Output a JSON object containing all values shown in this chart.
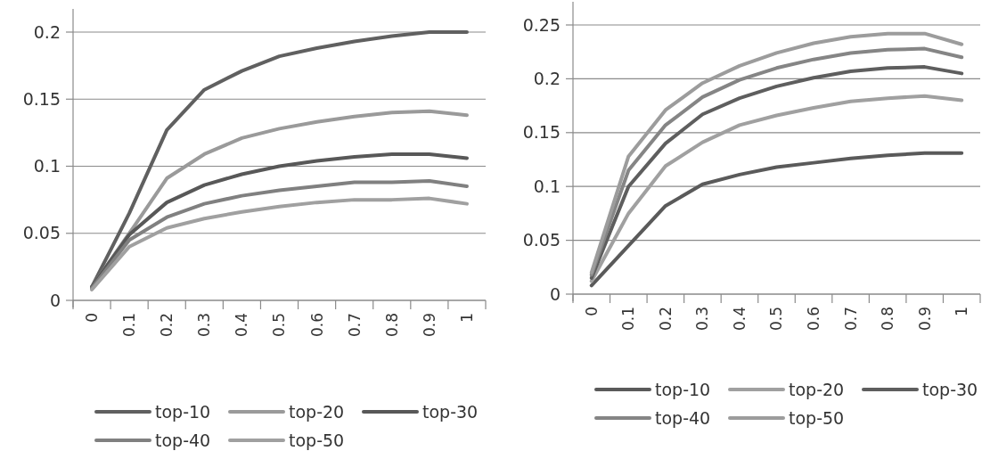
{
  "chart_data": [
    {
      "type": "line",
      "categories": [
        "0",
        "0.1",
        "0.2",
        "0.3",
        "0.4",
        "0.5",
        "0.6",
        "0.7",
        "0.8",
        "0.9",
        "1"
      ],
      "ylim": [
        0,
        0.2
      ],
      "yticks": [
        0,
        0.05,
        0.1,
        0.15,
        0.2
      ],
      "grid": "y",
      "legend": "bottom",
      "marker": "none",
      "line_style": "solid",
      "series": [
        {
          "name": "top-10",
          "color": "#606060",
          "values": [
            0.01,
            0.065,
            0.127,
            0.157,
            0.171,
            0.182,
            0.188,
            0.193,
            0.197,
            0.2,
            0.2
          ]
        },
        {
          "name": "top-20",
          "color": "#9a9a9a",
          "values": [
            0.01,
            0.05,
            0.091,
            0.109,
            0.121,
            0.128,
            0.133,
            0.137,
            0.14,
            0.141,
            0.138
          ]
        },
        {
          "name": "top-30",
          "color": "#585858",
          "values": [
            0.01,
            0.049,
            0.073,
            0.086,
            0.094,
            0.1,
            0.104,
            0.107,
            0.109,
            0.109,
            0.106
          ]
        },
        {
          "name": "top-40",
          "color": "#808080",
          "values": [
            0.009,
            0.045,
            0.062,
            0.072,
            0.078,
            0.082,
            0.085,
            0.088,
            0.088,
            0.089,
            0.085
          ]
        },
        {
          "name": "top-50",
          "color": "#a0a0a0",
          "values": [
            0.008,
            0.04,
            0.054,
            0.061,
            0.066,
            0.07,
            0.073,
            0.075,
            0.075,
            0.076,
            0.072
          ]
        }
      ]
    },
    {
      "type": "line",
      "categories": [
        "0",
        "0.1",
        "0.2",
        "0.3",
        "0.4",
        "0.5",
        "0.6",
        "0.7",
        "0.8",
        "0.9",
        "1"
      ],
      "ylim": [
        0,
        0.25
      ],
      "yticks": [
        0,
        0.05,
        0.1,
        0.15,
        0.2,
        0.25
      ],
      "grid": "y",
      "legend": "bottom",
      "marker": "none",
      "line_style": "solid",
      "series": [
        {
          "name": "top-10",
          "color": "#5a5a5a",
          "values": [
            0.008,
            0.045,
            0.082,
            0.102,
            0.111,
            0.118,
            0.122,
            0.126,
            0.129,
            0.131,
            0.131
          ]
        },
        {
          "name": "top-20",
          "color": "#a0a0a0",
          "values": [
            0.012,
            0.075,
            0.119,
            0.141,
            0.157,
            0.166,
            0.173,
            0.179,
            0.182,
            0.184,
            0.18
          ]
        },
        {
          "name": "top-30",
          "color": "#5e5e5e",
          "values": [
            0.015,
            0.1,
            0.14,
            0.167,
            0.182,
            0.193,
            0.201,
            0.207,
            0.21,
            0.211,
            0.205
          ]
        },
        {
          "name": "top-40",
          "color": "#858585",
          "values": [
            0.018,
            0.115,
            0.157,
            0.183,
            0.199,
            0.21,
            0.218,
            0.224,
            0.227,
            0.228,
            0.22
          ]
        },
        {
          "name": "top-50",
          "color": "#9c9c9c",
          "values": [
            0.02,
            0.128,
            0.171,
            0.196,
            0.212,
            0.224,
            0.233,
            0.239,
            0.242,
            0.242,
            0.232
          ]
        }
      ]
    }
  ]
}
